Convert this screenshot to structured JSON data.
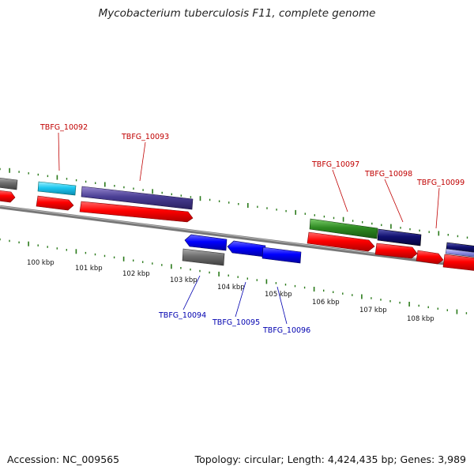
{
  "title": "Mycobacterium tuberculosis F11, complete genome",
  "footer": {
    "accession": "Accession: NC_009565",
    "summary": "Topology: circular; Length: 4,424,435 bp; Genes: 3,989"
  },
  "colors": {
    "tick": "#2a7a1a",
    "forward_label": "#c00000",
    "reverse_label": "#0000b0",
    "backbone": "#7a7a7a"
  },
  "ruler_labels": [
    "100 kbp",
    "101 kbp",
    "102 kbp",
    "103 kbp",
    "104 kbp",
    "105 kbp",
    "106 kbp",
    "107 kbp",
    "108 kbp"
  ],
  "gene_labels_forward": [
    "TBFG_10092",
    "TBFG_10093",
    "TBFG_10097",
    "TBFG_10098",
    "TBFG_10099"
  ],
  "gene_labels_reverse": [
    "TBFG_10094",
    "TBFG_10095",
    "TBFG_10096"
  ]
}
